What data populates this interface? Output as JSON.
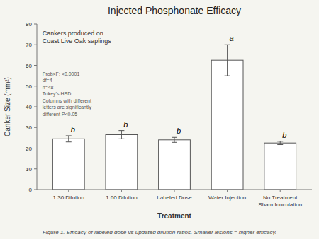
{
  "chart_data": {
    "type": "bar",
    "title": "Injected Phosphonate Efficacy",
    "xlabel": "Treatment",
    "ylabel": "Canker Size (mm²)",
    "categories": [
      "1:30 Dilution",
      "1:60 Dilution",
      "Labeled Dose",
      "Water Injection",
      "No Treatment\nSham Inoculation"
    ],
    "values": [
      24.5,
      26.5,
      24.0,
      62.5,
      22.5
    ],
    "errors": [
      1.5,
      2.0,
      1.2,
      7.5,
      0.8
    ],
    "letters": [
      "b",
      "b",
      "b",
      "a",
      "b"
    ],
    "color": "#ffffff",
    "ylim": [
      0,
      80
    ],
    "yticks": [
      0,
      10,
      20,
      30,
      40,
      50,
      60,
      70,
      80
    ],
    "grid": false,
    "annotations": [
      "Cankers produced on\nCoast Live Oak saplings",
      "Prob>F: <0.0001\ndf=4\nn=48\nTukey’s HSD\nColumns with different\nletters are significantly\ndifferent P<0.05"
    ],
    "caption": "Figure 1. Efficacy of labeled dose vs updated dilution ratios. Smaller lesions = higher efficacy."
  }
}
